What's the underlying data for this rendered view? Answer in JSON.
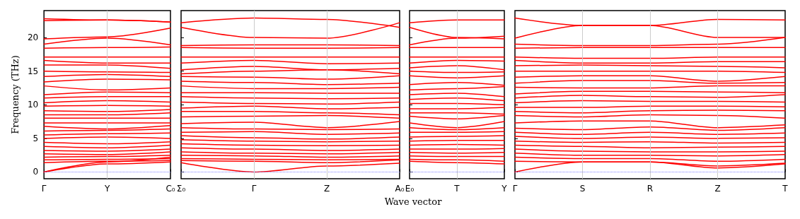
{
  "chart_data": [
    {
      "type": "line",
      "ylabel": "Frequency (THz)",
      "color": "#ff0000",
      "line_style": "solid",
      "marker": "none",
      "ylim": [
        -1,
        24
      ],
      "yticks": [
        0,
        5,
        10,
        15,
        20
      ],
      "categories": [
        "Γ",
        "Y",
        "C₀"
      ],
      "ref_lines": [
        {
          "axis": "y",
          "value": 0,
          "color": "#8080ff",
          "line_style": "dotted"
        },
        {
          "axis": "x",
          "value": "Y",
          "color": "#cccccc",
          "line_style": "solid"
        }
      ],
      "series": [
        {
          "values": [
            22.8,
            22.6,
            22.3
          ]
        },
        {
          "values": [
            22.5,
            22.6,
            22.3
          ]
        },
        {
          "values": [
            19.8,
            20.1,
            21.4
          ]
        },
        {
          "values": [
            19.0,
            19.9,
            18.9
          ]
        },
        {
          "values": [
            18.4,
            18.5,
            18.6
          ]
        },
        {
          "values": [
            17.1,
            17.1,
            17.1
          ]
        },
        {
          "values": [
            16.6,
            16.2,
            16.2
          ]
        },
        {
          "values": [
            15.9,
            15.9,
            15.4
          ]
        },
        {
          "values": [
            15.0,
            14.9,
            14.8
          ]
        },
        {
          "values": [
            14.2,
            14.5,
            14.2
          ]
        },
        {
          "values": [
            13.4,
            13.8,
            13.7
          ]
        },
        {
          "values": [
            12.8,
            12.2,
            12.5
          ]
        },
        {
          "values": [
            11.5,
            11.9,
            11.8
          ]
        },
        {
          "values": [
            11.0,
            11.2,
            11.2
          ]
        },
        {
          "values": [
            10.3,
            10.6,
            10.4
          ]
        },
        {
          "values": [
            9.8,
            9.9,
            9.8
          ]
        },
        {
          "values": [
            9.1,
            9.0,
            9.3
          ]
        },
        {
          "values": [
            8.5,
            8.5,
            8.8
          ]
        },
        {
          "values": [
            8.0,
            8.0,
            8.0
          ]
        },
        {
          "values": [
            7.3,
            7.3,
            7.3
          ]
        },
        {
          "values": [
            6.8,
            6.4,
            6.9
          ]
        },
        {
          "values": [
            6.1,
            6.2,
            6.4
          ]
        },
        {
          "values": [
            5.5,
            5.7,
            5.8
          ]
        },
        {
          "values": [
            5.0,
            5.2,
            5.0
          ]
        },
        {
          "values": [
            4.4,
            4.2,
            4.5
          ]
        },
        {
          "values": [
            3.8,
            3.6,
            4.0
          ]
        },
        {
          "values": [
            3.2,
            3.1,
            3.4
          ]
        },
        {
          "values": [
            2.7,
            2.6,
            3.0
          ]
        },
        {
          "values": [
            2.2,
            2.3,
            2.5
          ]
        },
        {
          "values": [
            1.8,
            1.9,
            2.0
          ]
        },
        {
          "values": [
            1.4,
            1.6,
            1.7
          ]
        },
        {
          "values": [
            0,
            1.2,
            1.5
          ]
        },
        {
          "values": [
            0,
            1.5,
            2.2
          ]
        }
      ]
    },
    {
      "type": "line",
      "xlabel": "Wave vector",
      "color": "#ff0000",
      "line_style": "solid",
      "marker": "none",
      "tick_labels": "x",
      "ylim": [
        -1,
        24
      ],
      "yticks": [
        0,
        5,
        10,
        15,
        20
      ],
      "categories": [
        "Σ₀",
        "Γ",
        "Z",
        "A₀"
      ],
      "ref_lines": [
        {
          "axis": "y",
          "value": 0,
          "color": "#8080ff",
          "line_style": "dotted"
        },
        {
          "axis": "x",
          "value": "Γ",
          "color": "#cccccc",
          "line_style": "solid"
        },
        {
          "axis": "x",
          "value": "Z",
          "color": "#cccccc",
          "line_style": "solid"
        }
      ],
      "series": [
        {
          "values": [
            22.2,
            22.9,
            22.7,
            21.5
          ]
        },
        {
          "values": [
            21.5,
            20.0,
            19.9,
            22.2
          ]
        },
        {
          "values": [
            18.8,
            18.9,
            18.9,
            18.8
          ]
        },
        {
          "values": [
            18.5,
            18.4,
            18.4,
            18.5
          ]
        },
        {
          "values": [
            17.1,
            17.1,
            17.1,
            17.1
          ]
        },
        {
          "values": [
            16.2,
            16.6,
            16.1,
            16.2
          ]
        },
        {
          "values": [
            15.2,
            15.7,
            15.2,
            15.4
          ]
        },
        {
          "values": [
            14.6,
            15.0,
            15.2,
            14.6
          ]
        },
        {
          "values": [
            14.2,
            14.1,
            13.8,
            14.3
          ]
        },
        {
          "values": [
            13.5,
            13.3,
            13.0,
            13.2
          ]
        },
        {
          "values": [
            12.8,
            12.4,
            12.4,
            12.6
          ]
        },
        {
          "values": [
            11.8,
            11.8,
            11.7,
            11.7
          ]
        },
        {
          "values": [
            11.2,
            11.0,
            10.9,
            11.0
          ]
        },
        {
          "values": [
            10.4,
            10.2,
            10.1,
            10.4
          ]
        },
        {
          "values": [
            9.5,
            9.8,
            9.4,
            9.6
          ]
        },
        {
          "values": [
            9.0,
            9.0,
            8.8,
            8.5
          ]
        },
        {
          "values": [
            8.2,
            8.3,
            8.4,
            8.0
          ]
        },
        {
          "values": [
            7.2,
            7.4,
            6.6,
            7.5
          ]
        },
        {
          "values": [
            6.6,
            6.4,
            6.3,
            6.4
          ]
        },
        {
          "values": [
            5.9,
            6.0,
            5.6,
            5.8
          ]
        },
        {
          "values": [
            5.4,
            5.1,
            4.9,
            5.2
          ]
        },
        {
          "values": [
            4.8,
            4.6,
            4.5,
            4.6
          ]
        },
        {
          "values": [
            4.2,
            4.0,
            3.9,
            4.0
          ]
        },
        {
          "values": [
            3.6,
            3.4,
            3.2,
            3.4
          ]
        },
        {
          "values": [
            3.0,
            2.8,
            2.7,
            2.9
          ]
        },
        {
          "values": [
            2.5,
            2.4,
            2.2,
            2.4
          ]
        },
        {
          "values": [
            2.0,
            1.9,
            1.8,
            1.9
          ]
        },
        {
          "values": [
            1.7,
            1.6,
            1.4,
            1.8
          ]
        },
        {
          "values": [
            1.4,
            0,
            0.9,
            1.3
          ]
        }
      ]
    },
    {
      "type": "line",
      "color": "#ff0000",
      "line_style": "solid",
      "marker": "none",
      "tick_labels": "x",
      "ylim": [
        -1,
        24
      ],
      "yticks": [
        0,
        5,
        10,
        15,
        20
      ],
      "categories": [
        "E₀",
        "T",
        "Y"
      ],
      "ref_lines": [
        {
          "axis": "y",
          "value": 0,
          "color": "#8080ff",
          "line_style": "dotted"
        },
        {
          "axis": "x",
          "value": "T",
          "color": "#cccccc",
          "line_style": "solid"
        }
      ],
      "series": [
        {
          "values": [
            22.2,
            22.6,
            22.6
          ]
        },
        {
          "values": [
            21.5,
            20.0,
            19.8
          ]
        },
        {
          "values": [
            18.9,
            19.9,
            20.2
          ]
        },
        {
          "values": [
            18.5,
            18.5,
            18.5
          ]
        },
        {
          "values": [
            17.1,
            17.1,
            17.1
          ]
        },
        {
          "values": [
            16.2,
            16.6,
            16.5
          ]
        },
        {
          "values": [
            15.5,
            15.8,
            15.2
          ]
        },
        {
          "values": [
            15.0,
            14.8,
            14.9
          ]
        },
        {
          "values": [
            14.3,
            14.0,
            14.3
          ]
        },
        {
          "values": [
            13.0,
            13.3,
            12.9
          ]
        },
        {
          "values": [
            12.2,
            12.4,
            12.7
          ]
        },
        {
          "values": [
            11.5,
            11.7,
            11.2
          ]
        },
        {
          "values": [
            10.8,
            11.0,
            10.6
          ]
        },
        {
          "values": [
            10.2,
            10.2,
            10.0
          ]
        },
        {
          "values": [
            9.4,
            9.4,
            9.6
          ]
        },
        {
          "values": [
            8.8,
            8.8,
            8.6
          ]
        },
        {
          "values": [
            8.3,
            7.9,
            8.4
          ]
        },
        {
          "values": [
            7.3,
            6.6,
            7.5
          ]
        },
        {
          "values": [
            6.6,
            6.3,
            6.6
          ]
        },
        {
          "values": [
            5.9,
            5.9,
            6.0
          ]
        },
        {
          "values": [
            5.2,
            5.3,
            5.4
          ]
        },
        {
          "values": [
            4.6,
            4.7,
            4.7
          ]
        },
        {
          "values": [
            4.0,
            4.1,
            4.0
          ]
        },
        {
          "values": [
            3.4,
            3.4,
            3.5
          ]
        },
        {
          "values": [
            2.9,
            2.8,
            2.9
          ]
        },
        {
          "values": [
            2.4,
            2.3,
            2.3
          ]
        },
        {
          "values": [
            1.9,
            1.8,
            1.6
          ]
        },
        {
          "values": [
            1.6,
            1.4,
            1.2
          ]
        }
      ]
    },
    {
      "type": "line",
      "color": "#ff0000",
      "line_style": "solid",
      "marker": "none",
      "tick_labels": "x",
      "ylim": [
        -1,
        24
      ],
      "yticks": [
        0,
        5,
        10,
        15,
        20
      ],
      "categories": [
        "Γ",
        "S",
        "R",
        "Z",
        "T"
      ],
      "ref_lines": [
        {
          "axis": "y",
          "value": 0,
          "color": "#8080ff",
          "line_style": "dotted"
        },
        {
          "axis": "x",
          "value": "S",
          "color": "#cccccc",
          "line_style": "solid"
        },
        {
          "axis": "x",
          "value": "R",
          "color": "#cccccc",
          "line_style": "solid"
        },
        {
          "axis": "x",
          "value": "Z",
          "color": "#cccccc",
          "line_style": "solid"
        }
      ],
      "series": [
        {
          "values": [
            22.9,
            21.8,
            21.8,
            22.7,
            22.6
          ]
        },
        {
          "values": [
            19.9,
            21.8,
            21.8,
            20.0,
            20.0
          ]
        },
        {
          "values": [
            19.0,
            18.8,
            18.8,
            19.0,
            20.0
          ]
        },
        {
          "values": [
            18.4,
            18.5,
            18.5,
            18.5,
            18.5
          ]
        },
        {
          "values": [
            17.1,
            16.9,
            16.9,
            17.1,
            17.1
          ]
        },
        {
          "values": [
            16.6,
            16.2,
            16.2,
            16.4,
            16.4
          ]
        },
        {
          "values": [
            15.8,
            15.9,
            15.8,
            15.7,
            15.5
          ]
        },
        {
          "values": [
            15.0,
            15.0,
            15.0,
            15.0,
            14.8
          ]
        },
        {
          "values": [
            14.1,
            14.3,
            14.3,
            13.5,
            14.2
          ]
        },
        {
          "values": [
            13.2,
            13.6,
            13.6,
            13.2,
            13.3
          ]
        },
        {
          "values": [
            12.6,
            12.5,
            12.5,
            12.8,
            12.8
          ]
        },
        {
          "values": [
            11.6,
            12.0,
            12.0,
            11.9,
            11.8
          ]
        },
        {
          "values": [
            11.0,
            11.4,
            11.2,
            11.1,
            11.5
          ]
        },
        {
          "values": [
            10.3,
            10.6,
            10.5,
            10.5,
            10.4
          ]
        },
        {
          "values": [
            9.6,
            9.6,
            9.8,
            9.8,
            9.7
          ]
        },
        {
          "values": [
            9.0,
            8.8,
            9.1,
            9.2,
            9.1
          ]
        },
        {
          "values": [
            8.4,
            8.2,
            8.5,
            8.4,
            8.0
          ]
        },
        {
          "values": [
            7.3,
            7.6,
            7.6,
            6.6,
            7.0
          ]
        },
        {
          "values": [
            6.5,
            6.3,
            6.7,
            6.2,
            6.6
          ]
        },
        {
          "values": [
            5.9,
            5.6,
            5.9,
            5.6,
            5.8
          ]
        },
        {
          "values": [
            5.3,
            5.0,
            5.2,
            5.0,
            5.1
          ]
        },
        {
          "values": [
            4.6,
            4.4,
            4.5,
            4.3,
            4.4
          ]
        },
        {
          "values": [
            4.0,
            3.8,
            3.6,
            3.7,
            3.8
          ]
        },
        {
          "values": [
            3.4,
            3.1,
            3.0,
            3.0,
            3.1
          ]
        },
        {
          "values": [
            2.8,
            2.5,
            2.5,
            2.4,
            2.6
          ]
        },
        {
          "values": [
            2.2,
            2.0,
            2.0,
            1.6,
            1.9
          ]
        },
        {
          "values": [
            1.6,
            1.5,
            1.5,
            0.9,
            1.3
          ]
        },
        {
          "values": [
            0,
            1.5,
            1.5,
            0.6,
            1.2
          ]
        }
      ]
    }
  ]
}
